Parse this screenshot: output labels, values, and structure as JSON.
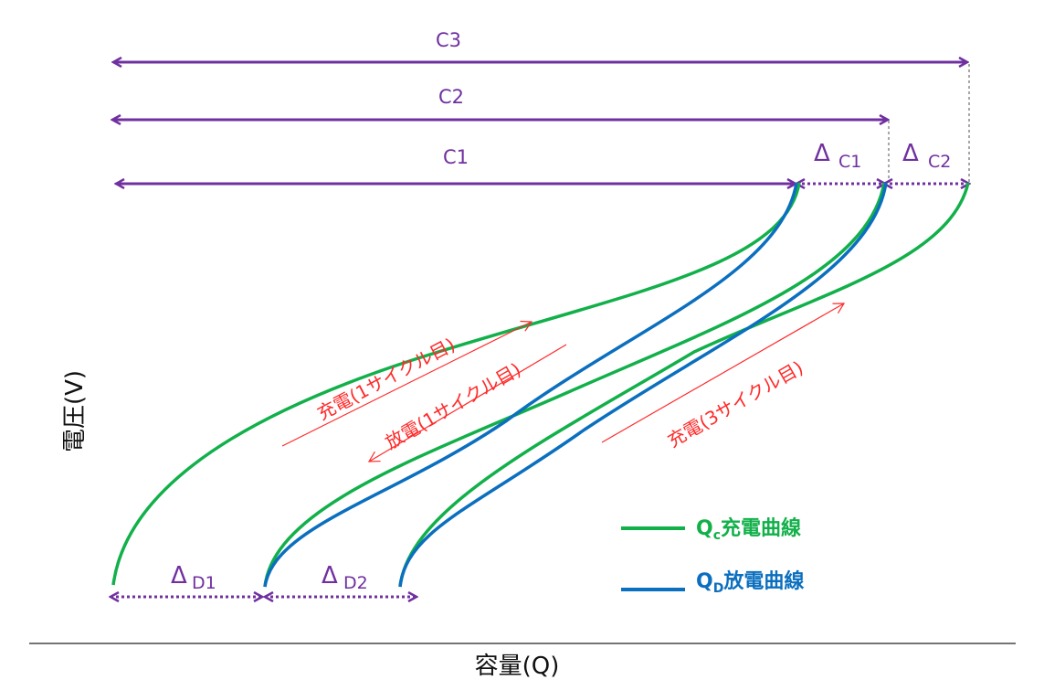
{
  "colors": {
    "purple": "#7030a0",
    "green": "#12b04a",
    "blue": "#0b6fbf",
    "red": "#ff2a2a",
    "grey": "#8c8c8c"
  },
  "dimensions": {
    "c1": "C1",
    "c2": "C2",
    "c3": "C3"
  },
  "deltas": {
    "dc1": {
      "symbol": "Δ",
      "sub": "C1"
    },
    "dc2": {
      "symbol": "Δ",
      "sub": "C2"
    },
    "dd1": {
      "symbol": "Δ",
      "sub": "D1"
    },
    "dd2": {
      "symbol": "Δ",
      "sub": "D2"
    }
  },
  "annotations": {
    "charge1": "充電(1サイクル目)",
    "discharge1": "放電(1サイクル目)",
    "charge3": "充電(3サイクル目)"
  },
  "legend": {
    "charge": {
      "main": "Q",
      "sub": "c",
      "text": "充電曲線"
    },
    "discharge": {
      "main": "Q",
      "sub": "D",
      "text": "放電曲線"
    }
  },
  "axes": {
    "y_label": "電圧(V)",
    "x_label": "容量(Q)"
  }
}
